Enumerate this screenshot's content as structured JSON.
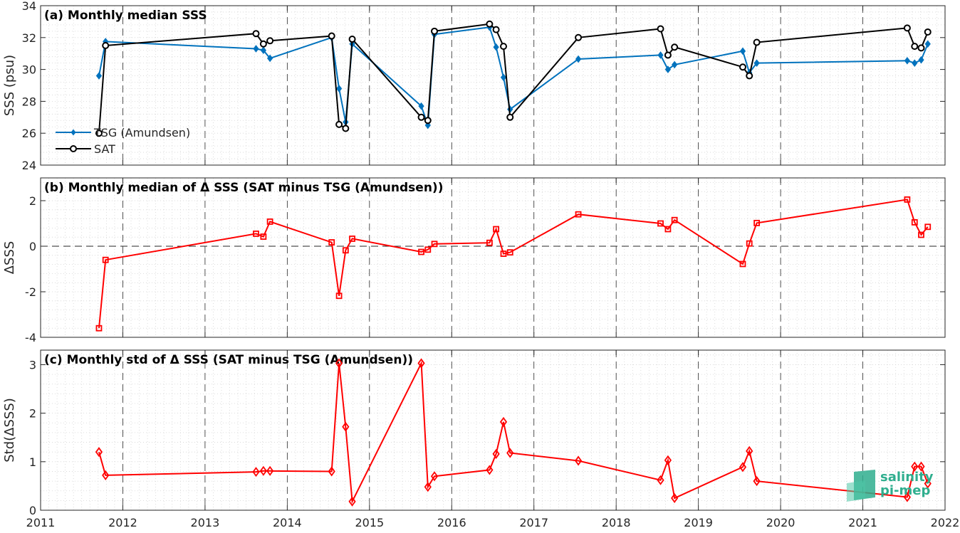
{
  "chart_data": [
    {
      "type": "line",
      "title": "(a) Monthly median SSS",
      "xlabel": "",
      "ylabel": "SSS (psu)",
      "xlim": [
        2011,
        2022
      ],
      "ylim": [
        24,
        34
      ],
      "yticks": [
        24,
        26,
        28,
        30,
        32,
        34
      ],
      "grid": "minor dotted",
      "legend_position": "bottom-left",
      "series": [
        {
          "name": "TSG (Amundsen)",
          "color": "#0072BD",
          "marker": "diamond-filled",
          "x": [
            2011.71,
            2011.79,
            2013.62,
            2013.71,
            2013.79,
            2014.54,
            2014.63,
            2014.71,
            2014.79,
            2015.63,
            2015.71,
            2015.79,
            2016.46,
            2016.54,
            2016.63,
            2016.71,
            2017.54,
            2018.54,
            2018.63,
            2018.71,
            2019.54,
            2019.62,
            2019.71,
            2021.54,
            2021.63,
            2021.71,
            2021.79
          ],
          "y": [
            29.6,
            31.75,
            31.3,
            31.2,
            30.7,
            32.0,
            28.8,
            26.7,
            31.6,
            27.7,
            26.5,
            32.2,
            32.65,
            31.4,
            29.5,
            27.5,
            30.65,
            30.9,
            30.0,
            30.3,
            31.15,
            29.8,
            30.4,
            30.55,
            30.4,
            30.6,
            31.6
          ]
        },
        {
          "name": "SAT",
          "color": "#000000",
          "marker": "circle-open",
          "x": [
            2011.71,
            2011.79,
            2013.62,
            2013.71,
            2013.79,
            2014.54,
            2014.63,
            2014.71,
            2014.79,
            2015.63,
            2015.71,
            2015.79,
            2016.46,
            2016.54,
            2016.63,
            2016.71,
            2017.54,
            2018.54,
            2018.63,
            2018.71,
            2019.54,
            2019.62,
            2019.71,
            2021.54,
            2021.63,
            2021.71,
            2021.79
          ],
          "y": [
            26.0,
            31.5,
            32.25,
            31.6,
            31.8,
            32.1,
            26.55,
            26.3,
            31.9,
            27.0,
            26.8,
            32.4,
            32.85,
            32.5,
            31.45,
            27.0,
            32.0,
            32.55,
            30.9,
            31.4,
            30.15,
            29.6,
            31.7,
            32.6,
            31.45,
            31.35,
            32.35
          ]
        }
      ]
    },
    {
      "type": "line",
      "title": "(b) Monthly median of Δ SSS (SAT minus TSG (Amundsen))",
      "xlabel": "",
      "ylabel": "ΔSSS",
      "xlim": [
        2011,
        2022
      ],
      "ylim": [
        -4,
        3
      ],
      "yticks": [
        -4,
        -2,
        0,
        2
      ],
      "grid": "minor dotted",
      "reference_line": 0,
      "series": [
        {
          "color": "#FF0000",
          "marker": "square-open",
          "x": [
            2011.71,
            2011.79,
            2013.62,
            2013.71,
            2013.79,
            2014.54,
            2014.63,
            2014.71,
            2014.79,
            2015.63,
            2015.71,
            2015.79,
            2016.46,
            2016.54,
            2016.63,
            2016.71,
            2017.54,
            2018.54,
            2018.63,
            2018.71,
            2019.54,
            2019.62,
            2019.71,
            2021.54,
            2021.63,
            2021.71,
            2021.79
          ],
          "y": [
            -3.6,
            -0.6,
            0.55,
            0.42,
            1.08,
            0.17,
            -2.18,
            -0.18,
            0.33,
            -0.25,
            -0.15,
            0.1,
            0.15,
            0.75,
            -0.33,
            -0.27,
            1.4,
            1.0,
            0.75,
            1.15,
            -0.78,
            0.12,
            1.02,
            2.05,
            1.05,
            0.5,
            0.85
          ]
        }
      ]
    },
    {
      "type": "line",
      "title": "(c) Monthly std of Δ SSS (SAT minus TSG (Amundsen))",
      "xlabel": "",
      "ylabel": "Std(ΔSSS)",
      "xlim": [
        2011,
        2022
      ],
      "ylim": [
        0,
        3.3
      ],
      "yticks": [
        0,
        1,
        2,
        3
      ],
      "xticks": [
        2011,
        2012,
        2013,
        2014,
        2015,
        2016,
        2017,
        2018,
        2019,
        2020,
        2021,
        2022
      ],
      "grid": "minor dotted",
      "series": [
        {
          "color": "#FF0000",
          "marker": "diamond-open",
          "x": [
            2011.71,
            2011.79,
            2013.62,
            2013.71,
            2013.79,
            2014.54,
            2014.63,
            2014.71,
            2014.79,
            2015.63,
            2015.71,
            2015.79,
            2016.46,
            2016.54,
            2016.63,
            2016.71,
            2017.54,
            2018.54,
            2018.63,
            2018.71,
            2019.54,
            2019.62,
            2019.71,
            2021.54,
            2021.63,
            2021.71,
            2021.79
          ],
          "y": [
            1.2,
            0.72,
            0.79,
            0.81,
            0.81,
            0.8,
            3.03,
            1.72,
            0.18,
            3.03,
            0.48,
            0.7,
            0.83,
            1.16,
            1.82,
            1.18,
            1.02,
            0.62,
            1.03,
            0.25,
            0.89,
            1.22,
            0.6,
            0.27,
            0.9,
            0.9,
            0.55
          ]
        }
      ]
    }
  ],
  "logo": {
    "line1": "salinity",
    "line2": "pi-mep",
    "color": "#2fae8e"
  }
}
